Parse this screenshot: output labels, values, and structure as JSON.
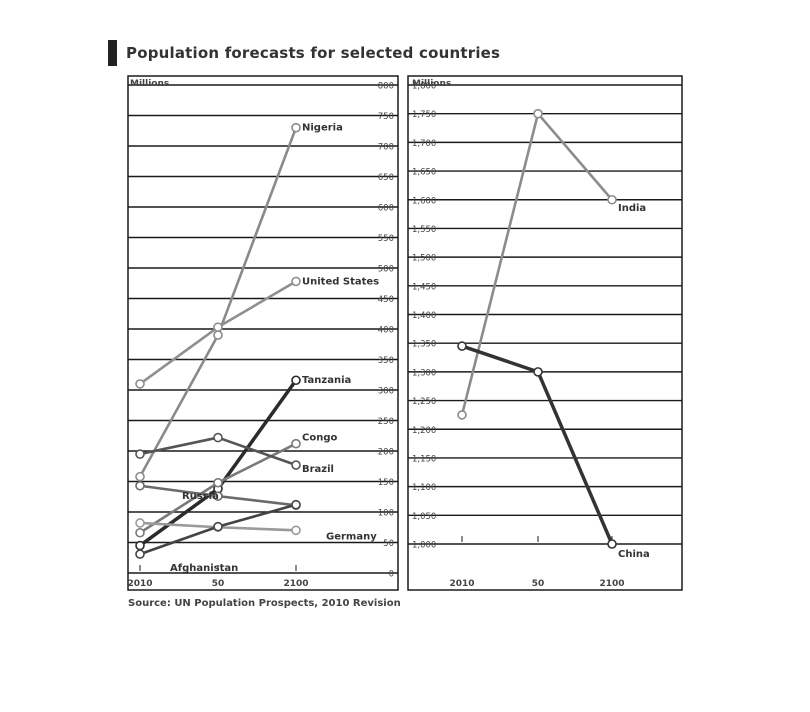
{
  "title": "Population forecasts for selected countries",
  "source": "Source: UN Population Prospects, 2010 Revision",
  "colors": {
    "nigeria": "#8a8a8a",
    "united_states": "#8f8f8f",
    "tanzania": "#2b2b2b",
    "congo": "#7a7a7a",
    "brazil": "#555555",
    "russia": "#6a6a6a",
    "germany": "#9a9a9a",
    "afghanistan": "#444444",
    "india": "#8c8c8c",
    "china": "#333333",
    "grid": "#1a1a1a"
  },
  "chart_data": [
    {
      "type": "line",
      "ylabel": "Millions",
      "categories": [
        "2010",
        "50",
        "2100"
      ],
      "ylim": [
        0,
        800
      ],
      "yticks": [
        "0",
        "50",
        "100",
        "150",
        "200",
        "250",
        "300",
        "350",
        "400",
        "450",
        "500",
        "550",
        "600",
        "650",
        "700",
        "750",
        "800"
      ],
      "series": [
        {
          "name": "Nigeria",
          "values": [
            158,
            390,
            730
          ]
        },
        {
          "name": "United States",
          "values": [
            310,
            403,
            478
          ]
        },
        {
          "name": "Tanzania",
          "values": [
            45,
            138,
            316
          ]
        },
        {
          "name": "Congo",
          "values": [
            66,
            148,
            212
          ]
        },
        {
          "name": "Brazil",
          "values": [
            195,
            222,
            177
          ]
        },
        {
          "name": "Russia",
          "values": [
            143,
            126,
            111
          ]
        },
        {
          "name": "Germany",
          "values": [
            82,
            75,
            70
          ]
        },
        {
          "name": "Afghanistan",
          "values": [
            31,
            76,
            112
          ]
        }
      ]
    },
    {
      "type": "line",
      "ylabel": "Millions",
      "categories": [
        "2010",
        "50",
        "2100"
      ],
      "ylim": [
        1000,
        1800
      ],
      "yticks": [
        "1,000",
        "1,050",
        "1,100",
        "1,150",
        "1,200",
        "1,250",
        "1,300",
        "1,350",
        "1,400",
        "1,450",
        "1,500",
        "1,550",
        "1,600",
        "1,650",
        "1,700",
        "1,750",
        "1,800"
      ],
      "series": [
        {
          "name": "India",
          "values": [
            1225,
            1750,
            1600
          ]
        },
        {
          "name": "China",
          "values": [
            1345,
            1300,
            1000
          ]
        }
      ]
    }
  ]
}
